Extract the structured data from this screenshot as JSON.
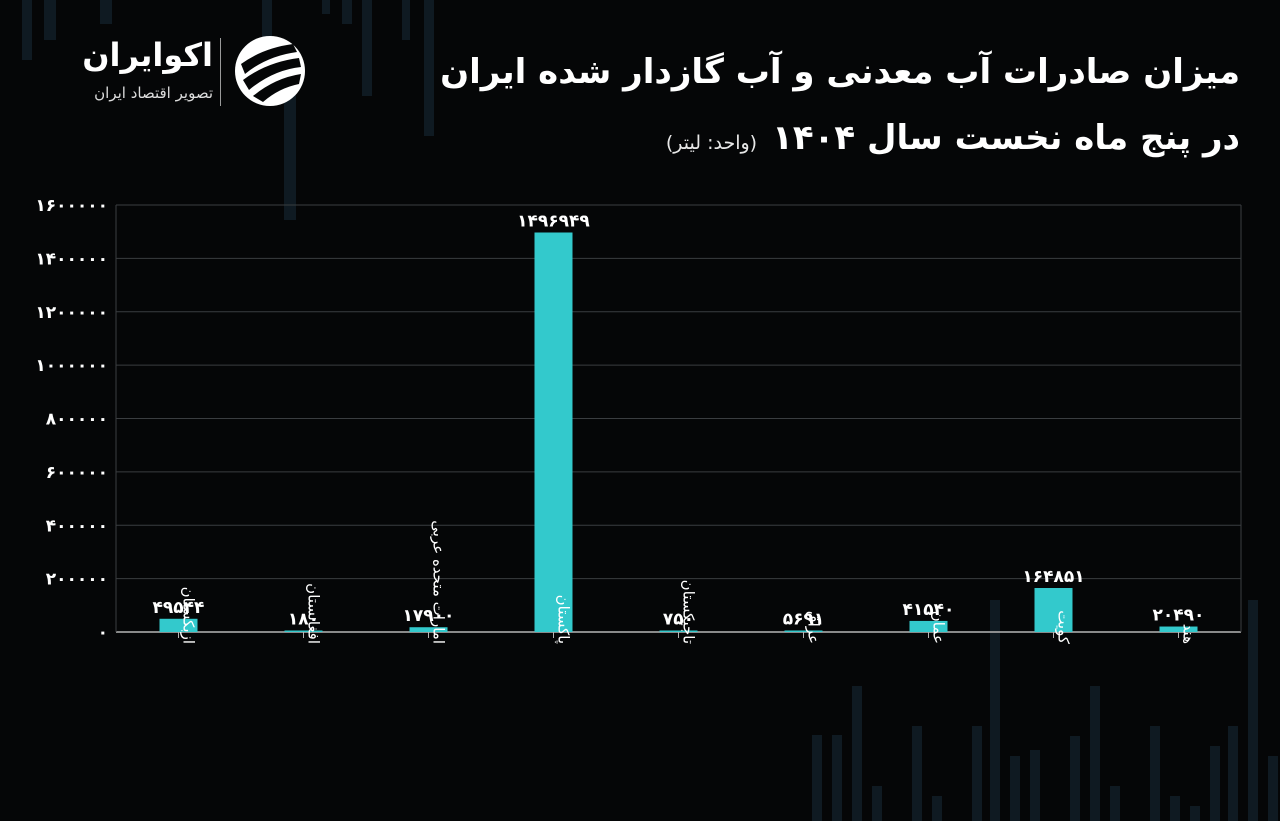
{
  "header": {
    "title": "میزان صادرات آب معدنی و آب گازدار شده ایران",
    "subtitle": "در پنج ماه نخست سال ۱۴۰۴",
    "unit": "(واحد: لیتر)"
  },
  "logo": {
    "name": "اکوایران",
    "tagline": "تصویر اقتصاد ایران"
  },
  "colors": {
    "background": "#050607",
    "bar": "#33C9CC",
    "grid": "#3a3d40",
    "axis": "#b5b5b5"
  },
  "chart_data": {
    "type": "bar",
    "categories": [
      "ازبکستان",
      "افغانستان",
      "امارات متحده عربی",
      "پاکستان",
      "تاجیکستان",
      "عراق",
      "عمان",
      "کویت",
      "هند"
    ],
    "values": [
      49544,
      180,
      17900,
      1496949,
      750,
      5691,
      41540,
      164851,
      20490
    ],
    "value_labels": [
      "۴۹۵۴۴",
      "۱۸۰",
      "۱۷۹۰۰",
      "۱۴۹۶۹۴۹",
      "۷۵۰",
      "۵۶۹۱",
      "۴۱۵۴۰",
      "۱۶۴۸۵۱",
      "۲۰۴۹۰"
    ],
    "ylim": [
      0,
      1600000
    ],
    "yticks": [
      0,
      200000,
      400000,
      600000,
      800000,
      1000000,
      1200000,
      1400000,
      1600000
    ],
    "ytick_labels": [
      "۰",
      "۲۰۰۰۰۰",
      "۴۰۰۰۰۰",
      "۶۰۰۰۰۰",
      "۸۰۰۰۰۰",
      "۱۰۰۰۰۰۰",
      "۱۲۰۰۰۰۰",
      "۱۴۰۰۰۰۰",
      "۱۶۰۰۰۰۰"
    ],
    "title": "میزان صادرات آب معدنی و آب گازدار شده ایران",
    "xlabel": "",
    "ylabel": "",
    "grid": true,
    "legend": "none"
  }
}
